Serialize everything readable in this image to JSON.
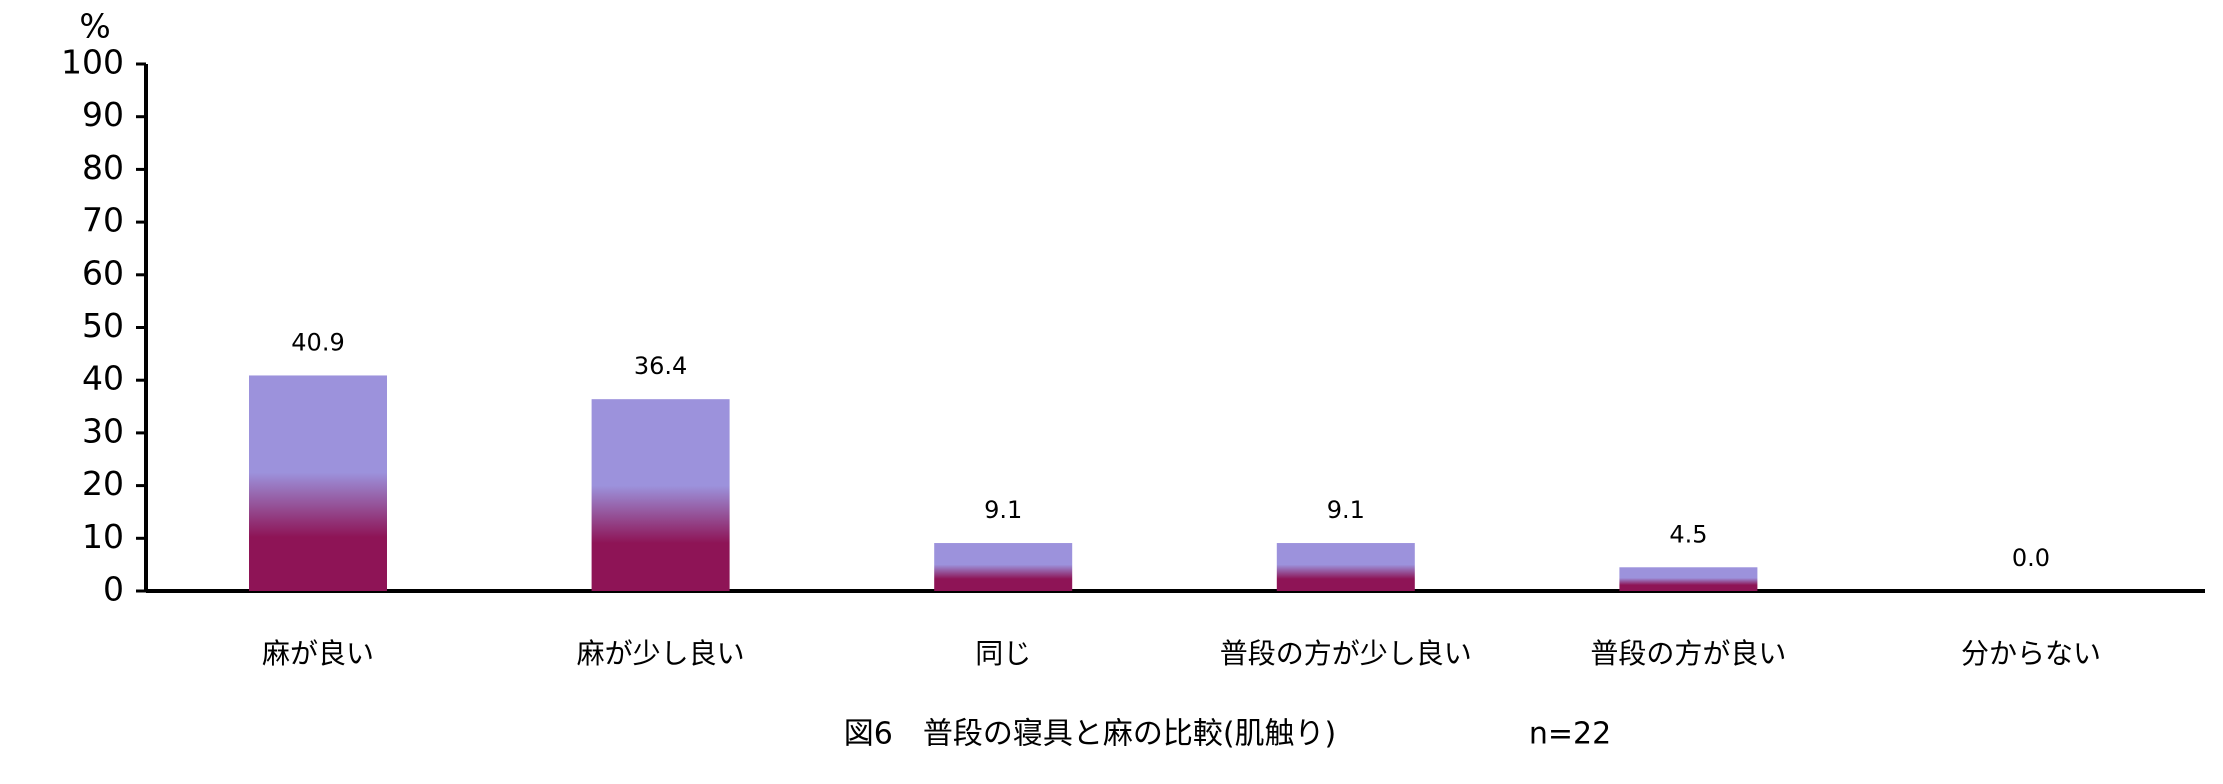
{
  "chart_data": {
    "type": "bar",
    "title": "図6　普段の寝具と麻の比較(肌触り)",
    "note": "n=22",
    "y_unit": "%",
    "categories": [
      "麻が良い",
      "麻が少し良い",
      "同じ",
      "普段の方が少し良い",
      "普段の方が良い",
      "分からない"
    ],
    "values": [
      40.9,
      36.4,
      9.1,
      9.1,
      4.5,
      0.0
    ],
    "value_labels": [
      "40.9",
      "36.4",
      "9.1",
      "9.1",
      "4.5",
      "0.0"
    ],
    "colors": [
      "#9c92dc",
      "#8e1456"
    ],
    "ylim": [
      0,
      100
    ],
    "yticks": [
      0,
      10,
      20,
      30,
      40,
      50,
      60,
      70,
      80,
      90,
      100
    ],
    "grid": false
  }
}
